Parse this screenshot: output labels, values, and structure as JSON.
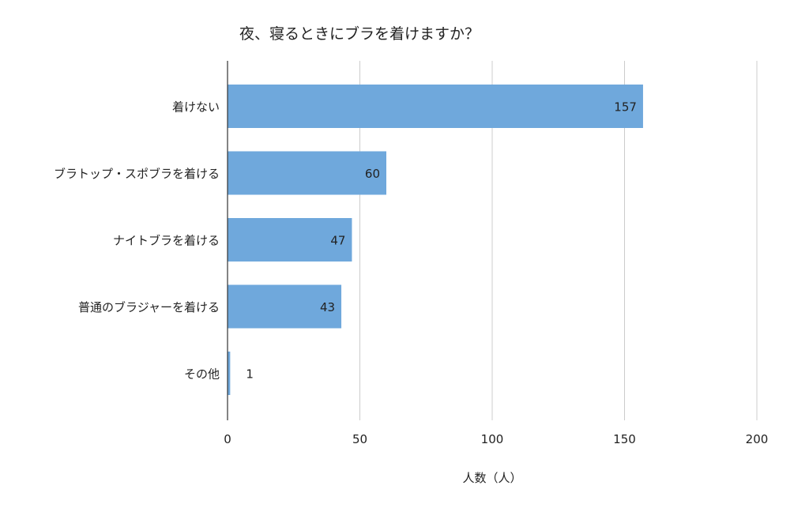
{
  "chart_data": {
    "type": "bar",
    "orientation": "horizontal",
    "title": "夜、寝るときにブラを着けますか？",
    "xlabel": "人数（人）",
    "ylabel": "",
    "categories": [
      "着けない",
      "ブラトップ・スポブラを着ける",
      "ナイトブラを着ける",
      "普通のブラジャーを着ける",
      "その他"
    ],
    "values": [
      157,
      60,
      47,
      43,
      1
    ],
    "xlim": [
      0,
      200
    ],
    "xticks": [
      0,
      50,
      100,
      150,
      200
    ],
    "grid": true,
    "legend": "none",
    "bar_color": "#6fa8dc",
    "grid_color": "#cccccc",
    "axis_color": "#333333",
    "text_color": "#222222"
  }
}
